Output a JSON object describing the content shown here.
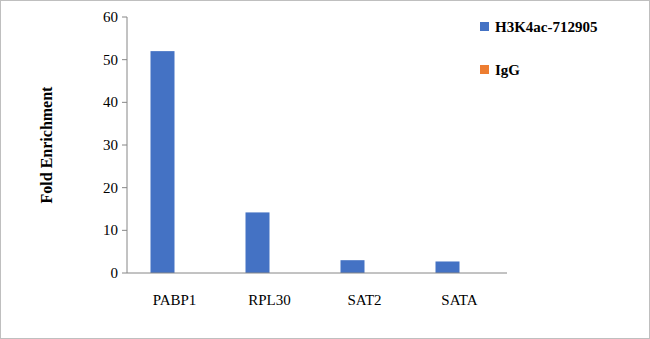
{
  "chart_data": {
    "type": "bar",
    "y_label": "Fold Enrichment",
    "categories": [
      "PABP1",
      "RPL30",
      "SAT2",
      "SATA"
    ],
    "series": [
      {
        "name": "H3K4ac-712905",
        "color": "#4472c4",
        "values": [
          52,
          14.2,
          3,
          2.7
        ]
      },
      {
        "name": "IgG",
        "color": "#ed7d31",
        "values": [
          0,
          0,
          0,
          0
        ]
      }
    ],
    "ylim": [
      0,
      60
    ],
    "yticks": [
      0,
      10,
      20,
      30,
      40,
      50,
      60
    ],
    "grid": false,
    "legend": "top-right"
  }
}
